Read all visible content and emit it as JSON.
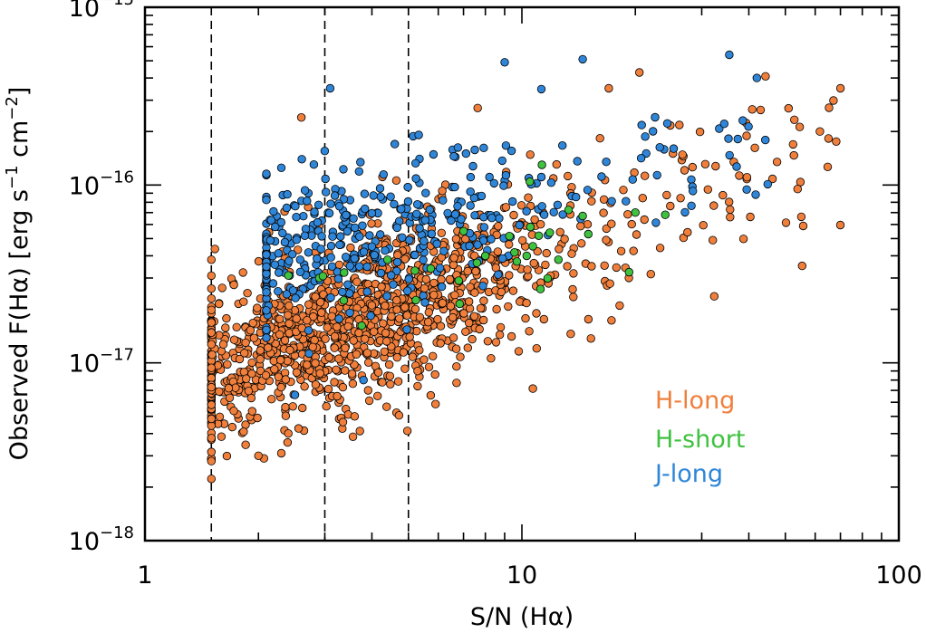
{
  "chart_data": {
    "type": "scatter",
    "x_scale": "log",
    "y_scale": "log",
    "xlim": [
      1,
      100
    ],
    "ylim": [
      1e-18,
      1e-15
    ],
    "xlabel": {
      "main": "S/N (H",
      "greek": "α",
      "end": ")"
    },
    "ylabel": {
      "pre": "Observed F(H",
      "greek": "α",
      "post": ")  [erg s",
      "sup1": "−1",
      "mid": " cm",
      "sup2": "−2",
      "end": "]"
    },
    "x_ticks": [
      {
        "value": 1,
        "label": "1"
      },
      {
        "value": 10,
        "label": "10"
      },
      {
        "value": 100,
        "label": "100"
      }
    ],
    "y_ticks": [
      {
        "value": 1e-18,
        "base": "10",
        "exp": "−18"
      },
      {
        "value": 1e-17,
        "base": "10",
        "exp": "−17"
      },
      {
        "value": 1e-16,
        "base": "10",
        "exp": "−16"
      },
      {
        "value": 1e-15,
        "base": "10",
        "exp": "−15"
      }
    ],
    "reference_lines_x": [
      1.5,
      3,
      5
    ],
    "reference_line_style": "dashed",
    "legend_position": "bottom-right",
    "series": [
      {
        "name": "H-long",
        "color": "#f07f3c",
        "n_points": 1250,
        "sn_range": [
          1.5,
          70
        ],
        "flux_trend_at_sn10": 3.8e-17,
        "flux_slope_log": 0.75,
        "flux_scatter_dex": 0.24,
        "sample_points": [
          {
            "x": 1.5,
            "y": 3.8e-17
          },
          {
            "x": 2.6,
            "y": 2.4e-16
          },
          {
            "x": 2.0,
            "y": 3e-18
          },
          {
            "x": 2.3,
            "y": 3.1e-18
          },
          {
            "x": 3.6,
            "y": 5e-18
          },
          {
            "x": 20.5,
            "y": 4.3e-16
          },
          {
            "x": 51,
            "y": 2.7e-16
          },
          {
            "x": 70,
            "y": 3.5e-16
          },
          {
            "x": 17,
            "y": 3.5e-16
          }
        ]
      },
      {
        "name": "H-short",
        "color": "#3fc23f",
        "n_points": 34,
        "sn_range": [
          2.4,
          24
        ],
        "sample_points": [
          {
            "x": 2.4,
            "y": 3.1e-17
          },
          {
            "x": 2.9,
            "y": 3e-17
          },
          {
            "x": 4.4,
            "y": 3.8e-17
          },
          {
            "x": 5.2,
            "y": 3.3e-17
          },
          {
            "x": 6.8,
            "y": 2.9e-17
          },
          {
            "x": 7.0,
            "y": 5.5e-17
          },
          {
            "x": 8.0,
            "y": 4e-17
          },
          {
            "x": 10.3,
            "y": 4e-17
          },
          {
            "x": 11.2,
            "y": 2.6e-17
          },
          {
            "x": 12.5,
            "y": 3.8e-17
          },
          {
            "x": 14.5,
            "y": 6.7e-17
          },
          {
            "x": 20.0,
            "y": 7e-17
          },
          {
            "x": 24.0,
            "y": 6.8e-17
          },
          {
            "x": 11.3,
            "y": 1.3e-16
          },
          {
            "x": 15.0,
            "y": 5.3e-17
          }
        ]
      },
      {
        "name": "J-long",
        "color": "#2f86d8",
        "n_points": 420,
        "sn_range": [
          2.1,
          46
        ],
        "flux_trend_at_sn10": 9e-17,
        "flux_slope_log": 0.55,
        "flux_scatter_dex": 0.2,
        "sample_points": [
          {
            "x": 3.1,
            "y": 3.5e-16
          },
          {
            "x": 9.0,
            "y": 4.9e-16
          },
          {
            "x": 14.5,
            "y": 5.1e-16
          },
          {
            "x": 35.5,
            "y": 5.4e-16
          },
          {
            "x": 2.3,
            "y": 1.25e-16
          },
          {
            "x": 3.8,
            "y": 8e-18
          },
          {
            "x": 2.5,
            "y": 6.6e-18
          },
          {
            "x": 42,
            "y": 4e-16
          }
        ]
      }
    ],
    "legend": [
      {
        "label": "H-long",
        "color": "#f07f3c"
      },
      {
        "label": "H-short",
        "color": "#3fc23f"
      },
      {
        "label": "J-long",
        "color": "#2f86d8"
      }
    ]
  }
}
